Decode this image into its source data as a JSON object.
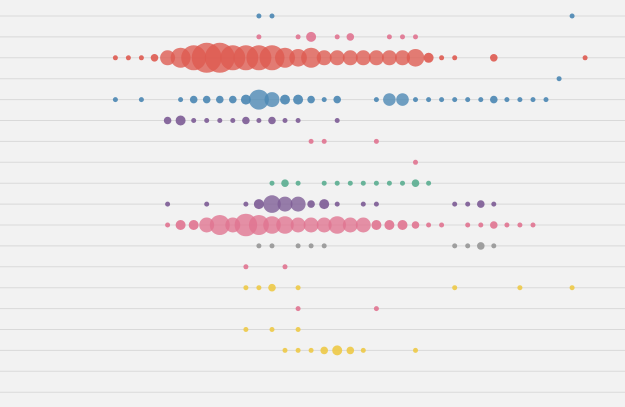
{
  "chart_data": {
    "type": "scatter",
    "title": "",
    "xlabel": "",
    "ylabel": "",
    "grid": true,
    "legend": "none",
    "rows": 20,
    "x_range": [
      0,
      48
    ],
    "series": [
      {
        "row": 0,
        "color": "#4a86b3",
        "points": [
          [
            18,
            1
          ],
          [
            19,
            1
          ],
          [
            42,
            1
          ]
        ]
      },
      {
        "row": 1,
        "color": "#e07390",
        "points": [
          [
            18,
            1
          ],
          [
            21,
            1
          ],
          [
            22,
            2
          ],
          [
            24,
            1
          ],
          [
            25,
            1.5
          ],
          [
            28,
            1
          ],
          [
            29,
            1
          ],
          [
            30,
            1
          ]
        ]
      },
      {
        "row": 2,
        "color": "#de5a50",
        "points": [
          [
            7,
            1
          ],
          [
            8,
            1
          ],
          [
            9,
            1
          ],
          [
            10,
            1.5
          ],
          [
            11,
            3
          ],
          [
            12,
            4
          ],
          [
            13,
            5
          ],
          [
            14,
            6
          ],
          [
            15,
            6
          ],
          [
            16,
            5
          ],
          [
            17,
            5
          ],
          [
            18,
            5
          ],
          [
            19,
            5
          ],
          [
            20,
            4
          ],
          [
            21,
            3.5
          ],
          [
            22,
            4
          ],
          [
            23,
            3
          ],
          [
            24,
            3
          ],
          [
            25,
            3
          ],
          [
            26,
            3
          ],
          [
            27,
            3
          ],
          [
            28,
            3
          ],
          [
            29,
            3
          ],
          [
            30,
            3.5
          ],
          [
            31,
            2
          ],
          [
            32,
            1
          ],
          [
            33,
            1
          ],
          [
            36,
            1.5
          ],
          [
            43,
            1
          ]
        ]
      },
      {
        "row": 3,
        "color": "#4a86b3",
        "points": [
          [
            41,
            1
          ]
        ]
      },
      {
        "row": 4,
        "color": "#4a86b3",
        "points": [
          [
            7,
            1
          ],
          [
            9,
            1
          ],
          [
            12,
            1
          ],
          [
            13,
            1.5
          ],
          [
            14,
            1.5
          ],
          [
            15,
            1.5
          ],
          [
            16,
            1.5
          ],
          [
            17,
            2
          ],
          [
            18,
            4
          ],
          [
            19,
            3
          ],
          [
            20,
            2
          ],
          [
            21,
            2
          ],
          [
            22,
            1.5
          ],
          [
            23,
            1
          ],
          [
            24,
            1.5
          ],
          [
            27,
            1
          ],
          [
            28,
            2.5
          ],
          [
            29,
            2.5
          ],
          [
            30,
            1
          ],
          [
            31,
            1
          ],
          [
            32,
            1
          ],
          [
            33,
            1
          ],
          [
            34,
            1
          ],
          [
            35,
            1
          ],
          [
            36,
            1.5
          ],
          [
            37,
            1
          ],
          [
            38,
            1
          ],
          [
            39,
            1
          ],
          [
            40,
            1
          ]
        ]
      },
      {
        "row": 5,
        "color": "#7c5b95",
        "points": [
          [
            11,
            1.5
          ],
          [
            12,
            2
          ],
          [
            13,
            1
          ],
          [
            14,
            1
          ],
          [
            15,
            1
          ],
          [
            16,
            1
          ],
          [
            17,
            1.5
          ],
          [
            18,
            1
          ],
          [
            19,
            1.5
          ],
          [
            20,
            1
          ],
          [
            21,
            1
          ],
          [
            24,
            1
          ]
        ]
      },
      {
        "row": 6,
        "color": "#e07390",
        "points": [
          [
            22,
            1
          ],
          [
            23,
            1
          ],
          [
            27,
            1
          ]
        ]
      },
      {
        "row": 7,
        "color": "#e07390",
        "points": [
          [
            30,
            1
          ]
        ]
      },
      {
        "row": 8,
        "color": "#5aad90",
        "points": [
          [
            19,
            1
          ],
          [
            20,
            1.5
          ],
          [
            21,
            1
          ],
          [
            23,
            1
          ],
          [
            24,
            1
          ],
          [
            25,
            1
          ],
          [
            26,
            1
          ],
          [
            27,
            1
          ],
          [
            28,
            1
          ],
          [
            29,
            1
          ],
          [
            30,
            1.5
          ],
          [
            31,
            1
          ]
        ]
      },
      {
        "row": 9,
        "color": "#7c5b95",
        "points": [
          [
            11,
            1
          ],
          [
            14,
            1
          ],
          [
            17,
            1
          ],
          [
            18,
            2
          ],
          [
            19,
            3.5
          ],
          [
            20,
            3
          ],
          [
            21,
            3
          ],
          [
            22,
            1.5
          ],
          [
            23,
            2
          ],
          [
            24,
            1
          ],
          [
            26,
            1
          ],
          [
            27,
            1
          ],
          [
            33,
            1
          ],
          [
            34,
            1
          ],
          [
            35,
            1.5
          ],
          [
            36,
            1
          ]
        ]
      },
      {
        "row": 10,
        "color": "#e07390",
        "points": [
          [
            11,
            1
          ],
          [
            12,
            2
          ],
          [
            13,
            2
          ],
          [
            14,
            3
          ],
          [
            15,
            4
          ],
          [
            16,
            3
          ],
          [
            17,
            4.5
          ],
          [
            18,
            4
          ],
          [
            19,
            3.5
          ],
          [
            20,
            3.5
          ],
          [
            21,
            3
          ],
          [
            22,
            3
          ],
          [
            23,
            3
          ],
          [
            24,
            3.5
          ],
          [
            25,
            3
          ],
          [
            26,
            3
          ],
          [
            27,
            2
          ],
          [
            28,
            2
          ],
          [
            29,
            2
          ],
          [
            30,
            1.5
          ],
          [
            31,
            1
          ],
          [
            32,
            1
          ],
          [
            34,
            1
          ],
          [
            35,
            1
          ],
          [
            36,
            1.5
          ],
          [
            37,
            1
          ],
          [
            38,
            1
          ],
          [
            39,
            1
          ]
        ]
      },
      {
        "row": 11,
        "color": "#969696",
        "points": [
          [
            18,
            1
          ],
          [
            19,
            1
          ],
          [
            21,
            1
          ],
          [
            22,
            1
          ],
          [
            23,
            1
          ],
          [
            33,
            1
          ],
          [
            34,
            1
          ],
          [
            35,
            1.5
          ],
          [
            36,
            1
          ]
        ]
      },
      {
        "row": 12,
        "color": "#e07390",
        "points": [
          [
            17,
            1
          ],
          [
            20,
            1
          ]
        ]
      },
      {
        "row": 13,
        "color": "#edc946",
        "points": [
          [
            17,
            1
          ],
          [
            18,
            1
          ],
          [
            19,
            1.5
          ],
          [
            21,
            1
          ],
          [
            33,
            1
          ],
          [
            38,
            1
          ],
          [
            42,
            1
          ]
        ]
      },
      {
        "row": 14,
        "color": "#e07390",
        "points": [
          [
            21,
            1
          ],
          [
            27,
            1
          ]
        ]
      },
      {
        "row": 15,
        "color": "#edc946",
        "points": [
          [
            17,
            1
          ],
          [
            19,
            1
          ],
          [
            21,
            1
          ]
        ]
      },
      {
        "row": 16,
        "color": "#edc946",
        "points": [
          [
            20,
            1
          ],
          [
            21,
            1
          ],
          [
            22,
            1
          ],
          [
            23,
            1.5
          ],
          [
            24,
            2
          ],
          [
            25,
            1.5
          ],
          [
            26,
            1
          ],
          [
            30,
            1
          ]
        ]
      }
    ]
  }
}
